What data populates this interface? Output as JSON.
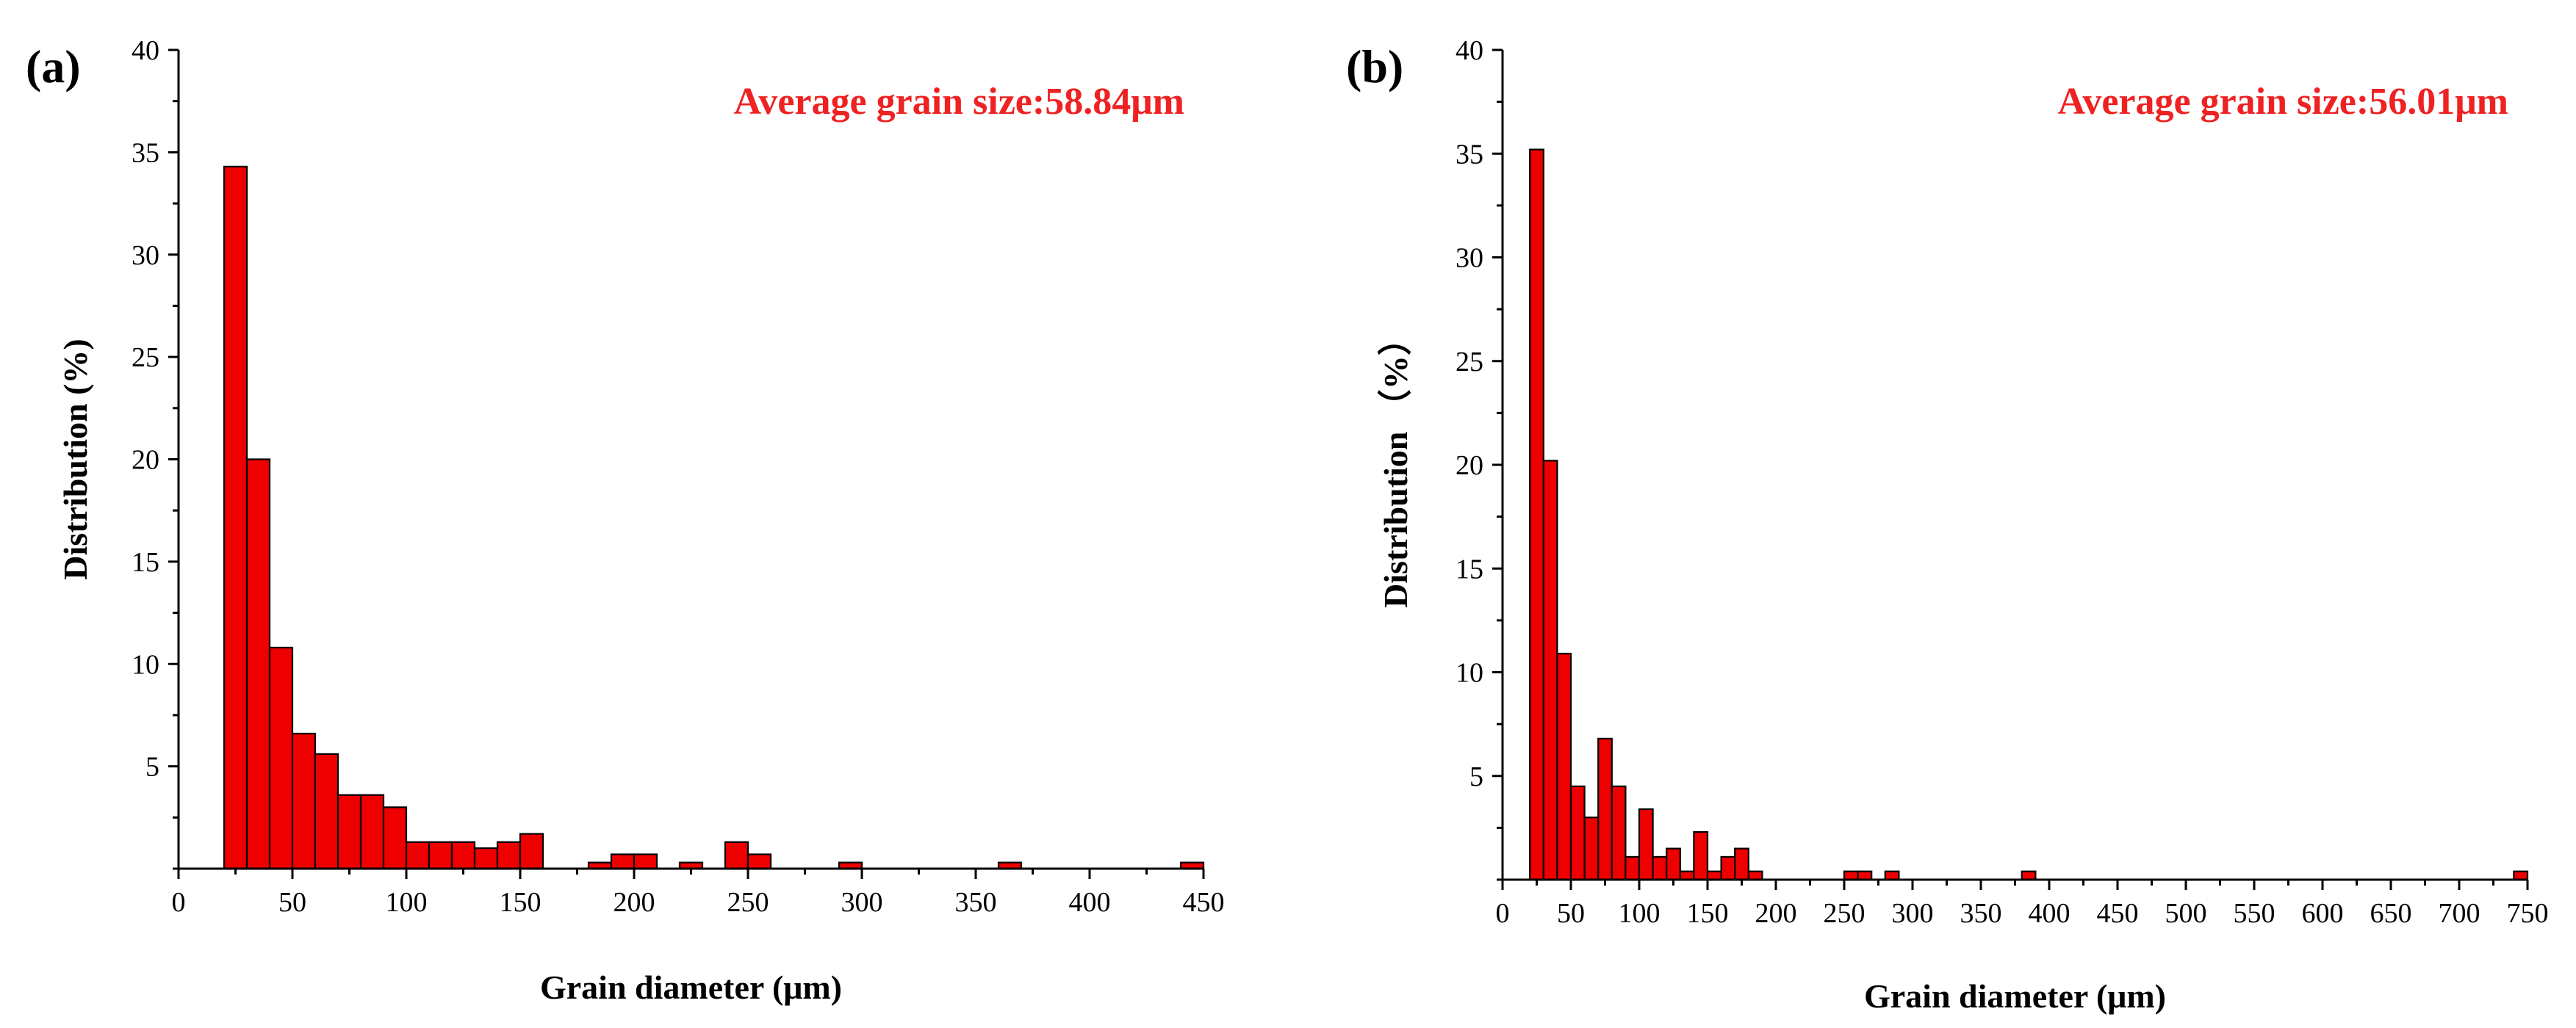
{
  "chart_data": [
    {
      "type": "bar",
      "panel_label": "(a)",
      "annotation": "Average grain size:58.84μm",
      "xlabel": "Grain diameter (μm)",
      "ylabel": "Distribution (%)",
      "xlim": [
        0,
        450
      ],
      "ylim": [
        0,
        40
      ],
      "xticks": [
        0,
        50,
        100,
        150,
        200,
        250,
        300,
        350,
        400,
        450
      ],
      "yticks": [
        5,
        10,
        15,
        20,
        25,
        30,
        35,
        40
      ],
      "bin_width": 10,
      "bars": [
        {
          "x": 25,
          "value": 34.3
        },
        {
          "x": 35,
          "value": 20.0
        },
        {
          "x": 45,
          "value": 10.8
        },
        {
          "x": 55,
          "value": 6.6
        },
        {
          "x": 65,
          "value": 5.6
        },
        {
          "x": 75,
          "value": 3.6
        },
        {
          "x": 85,
          "value": 3.6
        },
        {
          "x": 95,
          "value": 3.0
        },
        {
          "x": 105,
          "value": 1.3
        },
        {
          "x": 115,
          "value": 1.3
        },
        {
          "x": 125,
          "value": 1.3
        },
        {
          "x": 135,
          "value": 1.0
        },
        {
          "x": 145,
          "value": 1.3
        },
        {
          "x": 155,
          "value": 1.7
        },
        {
          "x": 185,
          "value": 0.3
        },
        {
          "x": 195,
          "value": 0.7
        },
        {
          "x": 205,
          "value": 0.7
        },
        {
          "x": 225,
          "value": 0.3
        },
        {
          "x": 245,
          "value": 1.3
        },
        {
          "x": 255,
          "value": 0.7
        },
        {
          "x": 295,
          "value": 0.3
        },
        {
          "x": 365,
          "value": 0.3
        },
        {
          "x": 445,
          "value": 0.3
        }
      ]
    },
    {
      "type": "bar",
      "panel_label": "(b)",
      "annotation": "Average grain size:56.01μm",
      "xlabel": "Grain diameter (μm)",
      "ylabel": "Distribution （%）",
      "xlim": [
        0,
        750
      ],
      "ylim": [
        0,
        40
      ],
      "xticks": [
        0,
        50,
        100,
        150,
        200,
        250,
        300,
        350,
        400,
        450,
        500,
        550,
        600,
        650,
        700,
        750
      ],
      "yticks": [
        5,
        10,
        15,
        20,
        25,
        30,
        35,
        40
      ],
      "bin_width": 10,
      "bars": [
        {
          "x": 25,
          "value": 35.2
        },
        {
          "x": 35,
          "value": 20.2
        },
        {
          "x": 45,
          "value": 10.9
        },
        {
          "x": 55,
          "value": 4.5
        },
        {
          "x": 65,
          "value": 3.0
        },
        {
          "x": 75,
          "value": 6.8
        },
        {
          "x": 85,
          "value": 4.5
        },
        {
          "x": 95,
          "value": 1.1
        },
        {
          "x": 105,
          "value": 3.4
        },
        {
          "x": 115,
          "value": 1.1
        },
        {
          "x": 125,
          "value": 1.5
        },
        {
          "x": 135,
          "value": 0.4
        },
        {
          "x": 145,
          "value": 2.3
        },
        {
          "x": 155,
          "value": 0.4
        },
        {
          "x": 165,
          "value": 1.1
        },
        {
          "x": 175,
          "value": 1.5
        },
        {
          "x": 185,
          "value": 0.4
        },
        {
          "x": 255,
          "value": 0.4
        },
        {
          "x": 265,
          "value": 0.4
        },
        {
          "x": 285,
          "value": 0.4
        },
        {
          "x": 385,
          "value": 0.4
        },
        {
          "x": 745,
          "value": 0.4
        }
      ]
    }
  ],
  "colors": {
    "bar_fill": "#ee0000",
    "bar_stroke": "#000000",
    "annotation": "#ee2222",
    "axis": "#000000"
  }
}
